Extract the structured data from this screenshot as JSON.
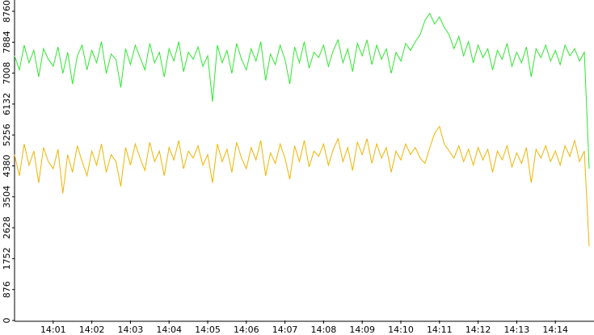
{
  "chart_data": {
    "type": "line",
    "categories": [
      null,
      null,
      null,
      null,
      null,
      null,
      null,
      null,
      "14:01",
      null,
      null,
      null,
      null,
      null,
      null,
      null,
      "14:02",
      null,
      null,
      null,
      null,
      null,
      null,
      null,
      "14:03",
      null,
      null,
      null,
      null,
      null,
      null,
      null,
      "14:04",
      null,
      null,
      null,
      null,
      null,
      null,
      null,
      "14:05",
      null,
      null,
      null,
      null,
      null,
      null,
      null,
      "14:06",
      null,
      null,
      null,
      null,
      null,
      null,
      null,
      "14:07",
      null,
      null,
      null,
      null,
      null,
      null,
      null,
      "14:08",
      null,
      null,
      null,
      null,
      null,
      null,
      null,
      "14:09",
      null,
      null,
      null,
      null,
      null,
      null,
      null,
      "14:10",
      null,
      null,
      null,
      null,
      null,
      null,
      null,
      "14:11",
      null,
      null,
      null,
      null,
      null,
      null,
      null,
      "14:12",
      null,
      null,
      null,
      null,
      null,
      null,
      null,
      "14:13",
      null,
      null,
      null,
      null,
      null,
      null,
      null,
      "14:14",
      null,
      null,
      null,
      null,
      null,
      null,
      null
    ],
    "series": [
      {
        "color": "#2fe62f",
        "values": [
          7500,
          7100,
          7800,
          7300,
          7650,
          6900,
          7700,
          7400,
          7200,
          7750,
          7000,
          7600,
          6700,
          7500,
          7800,
          7100,
          7650,
          7300,
          7900,
          7000,
          7550,
          7400,
          6600,
          7700,
          7250,
          7800,
          7450,
          7100,
          7850,
          7300,
          7600,
          6900,
          7700,
          7350,
          7900,
          7050,
          7600,
          7400,
          7750,
          7200,
          7500,
          6200,
          7800,
          7300,
          7650,
          7000,
          7850,
          7400,
          7100,
          7700,
          7350,
          7900,
          6800,
          7550,
          7250,
          7800,
          7400,
          6700,
          7750,
          7300,
          7900,
          7150,
          7600,
          7450,
          7800,
          7200,
          7650,
          7950,
          7300,
          7700,
          7050,
          7850,
          7500,
          7950,
          7250,
          7800,
          7400,
          7700,
          7000,
          7600,
          7350,
          7850,
          7650,
          7900,
          8100,
          8500,
          8700,
          8400,
          8600,
          8300,
          8100,
          7700,
          8050,
          7500,
          7900,
          7300,
          7800,
          7450,
          7700,
          7100,
          7650,
          7400,
          7850,
          7200,
          7600,
          7300,
          7750,
          6900,
          7700,
          7450,
          7800,
          7350,
          7650,
          7250,
          7800,
          7500,
          7700,
          7350,
          7600,
          4300
        ]
      },
      {
        "color": "#f0b400",
        "values": [
          4700,
          4100,
          5000,
          4400,
          4800,
          3900,
          4900,
          4500,
          4300,
          4850,
          3600,
          4700,
          4200,
          4950,
          4500,
          4100,
          4800,
          4400,
          5000,
          4200,
          4700,
          4500,
          3800,
          4900,
          4400,
          5000,
          4600,
          4250,
          5050,
          4500,
          4800,
          4100,
          4900,
          4550,
          5100,
          4300,
          4800,
          4600,
          4950,
          4400,
          4700,
          3900,
          5000,
          4500,
          4850,
          4200,
          5050,
          4600,
          4300,
          4900,
          4550,
          5100,
          4100,
          4750,
          4450,
          5000,
          4600,
          4000,
          4950,
          4500,
          5100,
          4350,
          4800,
          4650,
          5000,
          4400,
          4850,
          5150,
          4500,
          4900,
          4250,
          5050,
          4700,
          5150,
          4450,
          5000,
          4600,
          4900,
          4200,
          4800,
          4550,
          5000,
          4700,
          4900,
          4600,
          4450,
          4900,
          5300,
          5500,
          5000,
          4800,
          4600,
          4950,
          4500,
          4850,
          4400,
          4900,
          4550,
          4850,
          4200,
          4800,
          4550,
          4950,
          4350,
          4750,
          4450,
          4900,
          3900,
          4850,
          4600,
          4950,
          4500,
          4800,
          4400,
          4950,
          4650,
          5100,
          4500,
          4800,
          2100
        ]
      }
    ],
    "ylim": [
      0,
      8760
    ],
    "yticks": [
      0,
      876,
      1752,
      2628,
      3504,
      4380,
      5256,
      6132,
      7008,
      7884,
      8760
    ]
  }
}
